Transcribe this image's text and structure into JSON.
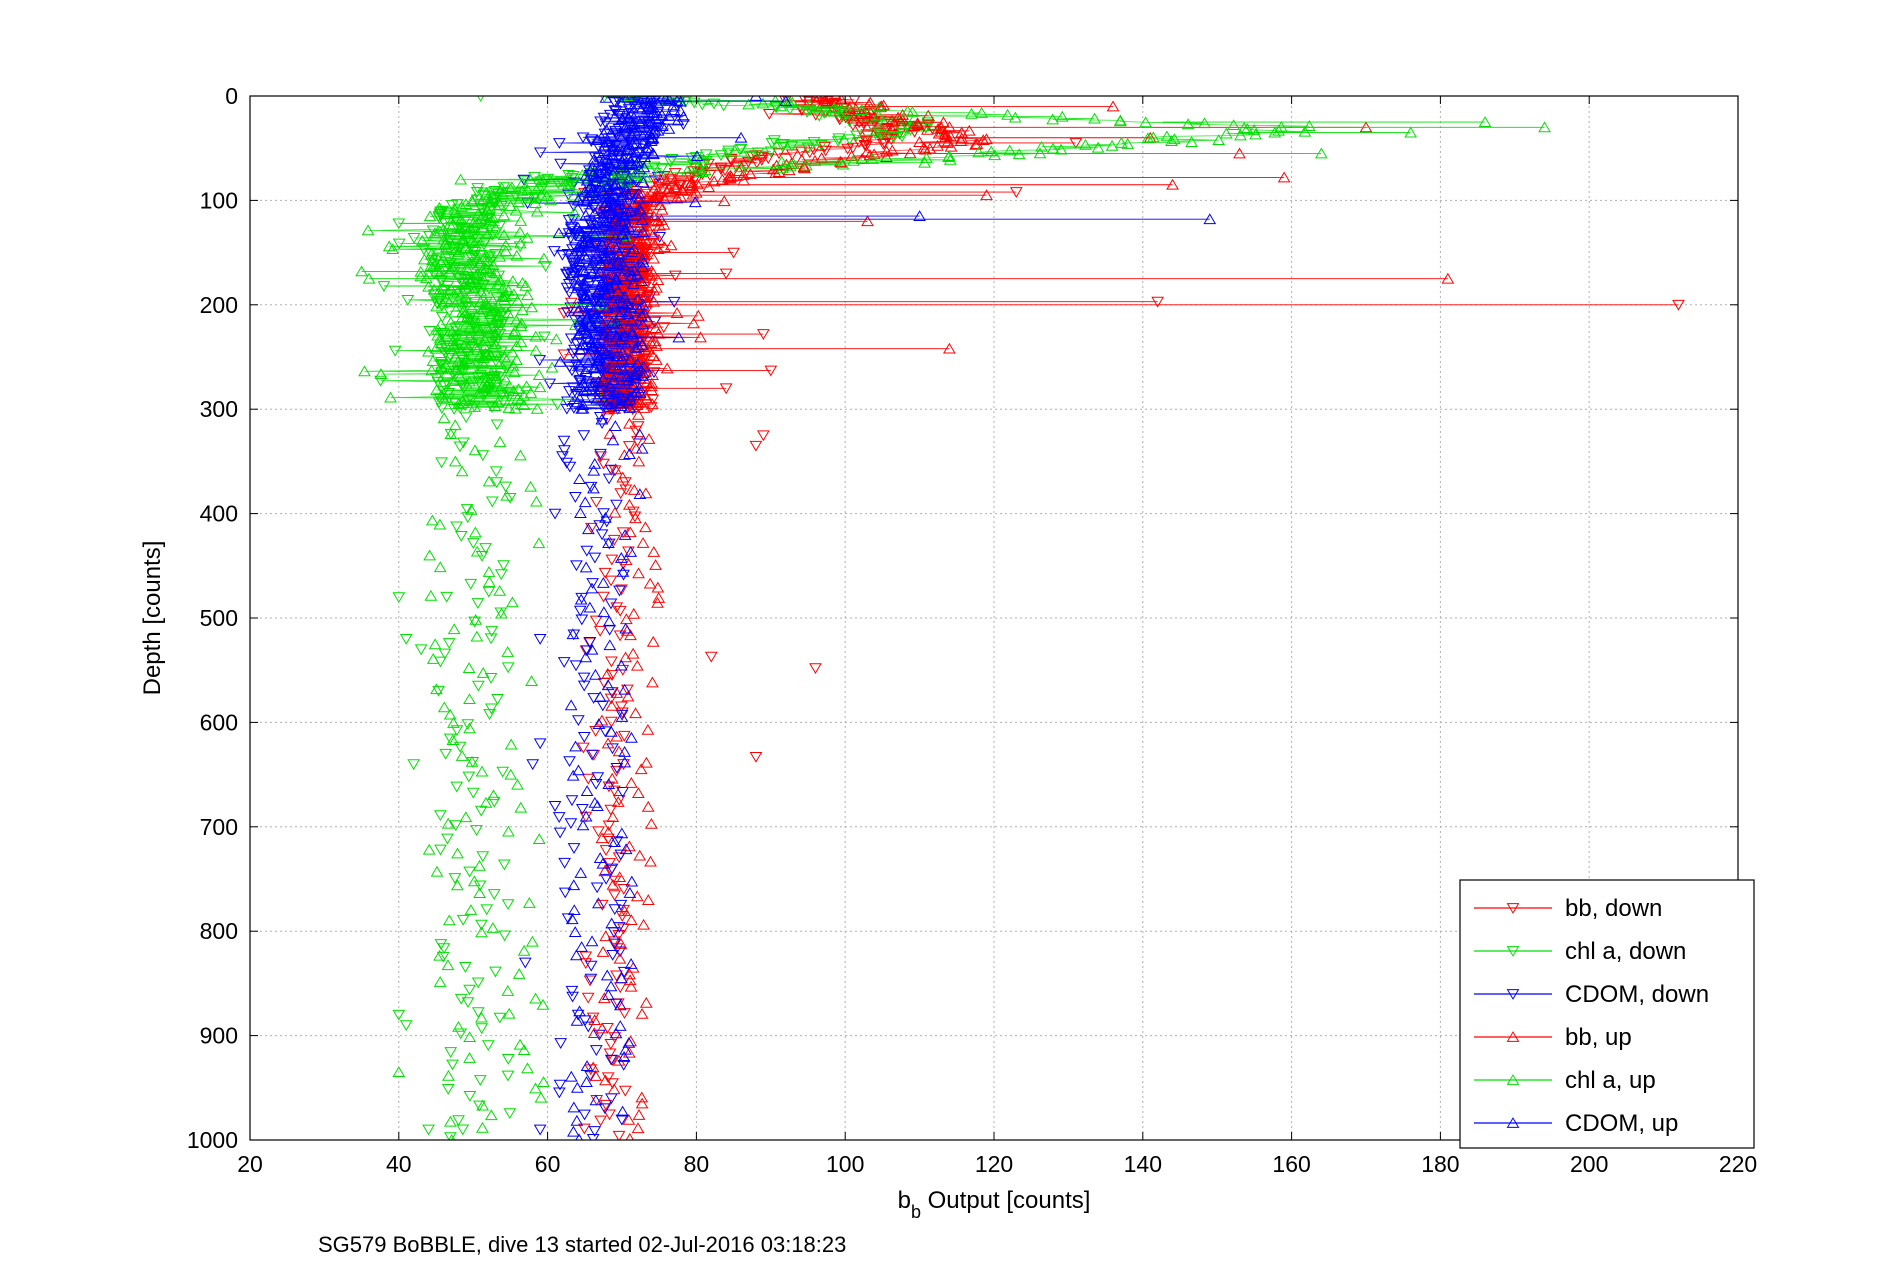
{
  "chart_data": {
    "type": "scatter",
    "title": "",
    "xlabel_main": "b",
    "xlabel_sub": "b",
    "xlabel_rest": " Output [counts]",
    "ylabel": "Depth [counts]",
    "caption": "SG579 BoBBLE, dive 13 started 02-Jul-2016 03:18:23",
    "xlim": [
      20,
      220
    ],
    "ylim": [
      0,
      1000
    ],
    "y_reversed": true,
    "grid": true,
    "legend_position": "bottom-right",
    "x_ticks": [
      "20",
      "40",
      "60",
      "80",
      "100",
      "120",
      "140",
      "160",
      "180",
      "200",
      "220"
    ],
    "y_ticks": [
      "0",
      "100",
      "200",
      "300",
      "400",
      "500",
      "600",
      "700",
      "800",
      "900",
      "1000"
    ],
    "colors": {
      "bb": "#ff0000",
      "chl": "#00e000",
      "cdom": "#0000ff",
      "grid": "#b0b0b0"
    },
    "series": [
      {
        "name": "bb, down",
        "color": "#ff0000",
        "marker": "triangle-down",
        "profile": [
          [
            0,
            95
          ],
          [
            15,
            98
          ],
          [
            30,
            106
          ],
          [
            45,
            104
          ],
          [
            60,
            88
          ],
          [
            75,
            80
          ],
          [
            90,
            74
          ],
          [
            110,
            71
          ],
          [
            150,
            71
          ],
          [
            200,
            71
          ],
          [
            250,
            71
          ],
          [
            300,
            70
          ],
          [
            350,
            70
          ],
          [
            400,
            70
          ],
          [
            500,
            69
          ],
          [
            600,
            69
          ],
          [
            700,
            68
          ],
          [
            800,
            68
          ],
          [
            900,
            68
          ],
          [
            1000,
            68
          ]
        ],
        "spread_upper": 2.5,
        "spread_lower": 4,
        "outliers": [
          [
            0,
            92
          ],
          [
            10,
            100
          ],
          [
            45,
            131
          ],
          [
            92,
            123
          ],
          [
            200,
            212
          ],
          [
            197,
            142
          ],
          [
            263,
            90
          ],
          [
            280,
            84
          ],
          [
            325,
            89
          ],
          [
            335,
            88
          ],
          [
            537,
            82
          ],
          [
            548,
            96
          ],
          [
            633,
            88
          ],
          [
            150,
            85
          ],
          [
            170,
            84
          ],
          [
            228,
            89
          ]
        ]
      },
      {
        "name": "chl a, down",
        "color": "#00e000",
        "marker": "triangle-down",
        "profile": [
          [
            0,
            68
          ],
          [
            15,
            95
          ],
          [
            30,
            112
          ],
          [
            45,
            96
          ],
          [
            60,
            82
          ],
          [
            75,
            64
          ],
          [
            90,
            56
          ],
          [
            110,
            50
          ],
          [
            150,
            48
          ],
          [
            200,
            50
          ],
          [
            250,
            50
          ],
          [
            300,
            50
          ],
          [
            350,
            50
          ],
          [
            400,
            50
          ],
          [
            500,
            50
          ],
          [
            600,
            50
          ],
          [
            700,
            50
          ],
          [
            800,
            50
          ],
          [
            900,
            50
          ],
          [
            1000,
            50
          ]
        ],
        "spread_upper": 5,
        "spread_lower": 5,
        "outliers": [
          [
            0,
            51
          ],
          [
            122,
            40
          ],
          [
            182,
            38
          ],
          [
            480,
            40
          ],
          [
            520,
            41
          ],
          [
            530,
            43
          ],
          [
            640,
            42
          ],
          [
            880,
            40
          ],
          [
            890,
            41
          ],
          [
            990,
            44
          ]
        ]
      },
      {
        "name": "CDOM, down",
        "color": "#0000ff",
        "marker": "triangle-down",
        "profile": [
          [
            0,
            74
          ],
          [
            15,
            72
          ],
          [
            30,
            71
          ],
          [
            45,
            70
          ],
          [
            60,
            69
          ],
          [
            75,
            68
          ],
          [
            90,
            67
          ],
          [
            110,
            67
          ],
          [
            150,
            67
          ],
          [
            200,
            67
          ],
          [
            250,
            67
          ],
          [
            300,
            67
          ],
          [
            350,
            66
          ],
          [
            400,
            66
          ],
          [
            500,
            66
          ],
          [
            600,
            66
          ],
          [
            700,
            66
          ],
          [
            800,
            66
          ],
          [
            900,
            66
          ],
          [
            1000,
            66
          ]
        ],
        "spread_upper": 4.5,
        "spread_lower": 4.5,
        "outliers": [
          [
            345,
            62
          ],
          [
            355,
            63
          ],
          [
            520,
            59
          ],
          [
            620,
            59
          ],
          [
            640,
            58
          ],
          [
            830,
            57
          ],
          [
            990,
            59
          ],
          [
            400,
            61
          ],
          [
            680,
            61
          ]
        ]
      },
      {
        "name": "bb, up",
        "color": "#ff0000",
        "marker": "triangle-up",
        "profile": [
          [
            0,
            98
          ],
          [
            15,
            104
          ],
          [
            30,
            112
          ],
          [
            45,
            116
          ],
          [
            60,
            99
          ],
          [
            75,
            86
          ],
          [
            90,
            78
          ],
          [
            110,
            72
          ],
          [
            150,
            71
          ],
          [
            200,
            71
          ],
          [
            250,
            71
          ],
          [
            300,
            70
          ],
          [
            350,
            72
          ],
          [
            400,
            72
          ],
          [
            500,
            71
          ],
          [
            600,
            70
          ],
          [
            700,
            70
          ],
          [
            800,
            70
          ],
          [
            900,
            69
          ],
          [
            1000,
            69
          ]
        ],
        "spread_upper": 4,
        "spread_lower": 3,
        "outliers": [
          [
            10,
            136
          ],
          [
            30,
            170
          ],
          [
            85,
            144
          ],
          [
            78,
            159
          ],
          [
            175,
            181
          ],
          [
            242,
            114
          ],
          [
            120,
            103
          ],
          [
            55,
            153
          ],
          [
            40,
            141
          ],
          [
            95,
            119
          ]
        ]
      },
      {
        "name": "chl a, up",
        "color": "#00e000",
        "marker": "triangle-up",
        "profile": [
          [
            0,
            72
          ],
          [
            15,
            108
          ],
          [
            30,
            160
          ],
          [
            45,
            140
          ],
          [
            60,
            110
          ],
          [
            75,
            70
          ],
          [
            90,
            58
          ],
          [
            110,
            51
          ],
          [
            150,
            49
          ],
          [
            200,
            50
          ],
          [
            250,
            51
          ],
          [
            300,
            51
          ],
          [
            350,
            51
          ],
          [
            400,
            51
          ],
          [
            500,
            51
          ],
          [
            600,
            51
          ],
          [
            700,
            51
          ],
          [
            800,
            51
          ],
          [
            900,
            52
          ],
          [
            1000,
            52
          ]
        ],
        "spread_upper": 8,
        "spread_lower": 7,
        "outliers": [
          [
            30,
            194
          ],
          [
            25,
            186
          ],
          [
            35,
            176
          ],
          [
            55,
            164
          ],
          [
            168,
            35
          ],
          [
            175,
            36
          ],
          [
            935,
            40
          ]
        ]
      },
      {
        "name": "CDOM, up",
        "color": "#0000ff",
        "marker": "triangle-up",
        "profile": [
          [
            0,
            76
          ],
          [
            15,
            74
          ],
          [
            30,
            72
          ],
          [
            45,
            70
          ],
          [
            60,
            70
          ],
          [
            75,
            69
          ],
          [
            90,
            68
          ],
          [
            110,
            68
          ],
          [
            150,
            68
          ],
          [
            200,
            68
          ],
          [
            250,
            68
          ],
          [
            300,
            68
          ],
          [
            350,
            68
          ],
          [
            400,
            68
          ],
          [
            500,
            67
          ],
          [
            600,
            67
          ],
          [
            700,
            67
          ],
          [
            800,
            67
          ],
          [
            900,
            67
          ],
          [
            1000,
            67
          ]
        ],
        "spread_upper": 5,
        "spread_lower": 4,
        "outliers": [
          [
            118,
            149
          ],
          [
            115,
            110
          ],
          [
            0,
            88
          ],
          [
            5,
            92
          ],
          [
            40,
            86
          ],
          [
            130,
            63
          ]
        ]
      }
    ]
  }
}
